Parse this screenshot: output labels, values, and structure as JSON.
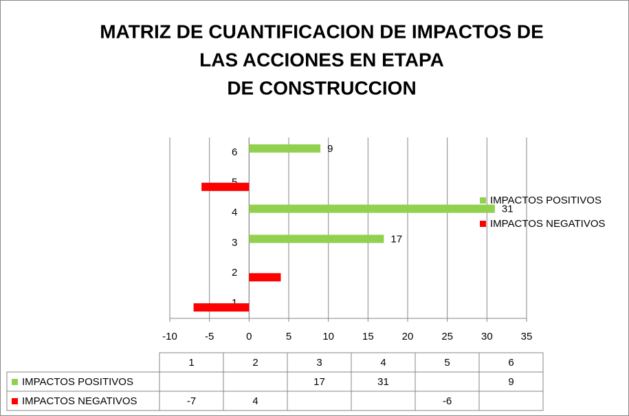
{
  "chart_data": {
    "type": "hbar",
    "title": [
      "MATRIZ DE CUANTIFICACION DE IMPACTOS DE",
      "LAS ACCIONES EN ETAPA",
      "DE CONSTRUCCION"
    ],
    "categories": [
      "1",
      "2",
      "3",
      "4",
      "5",
      "6"
    ],
    "series": [
      {
        "name": "IMPACTOS POSITIVOS",
        "color": "#92d050",
        "values": [
          null,
          null,
          17,
          31,
          null,
          9
        ],
        "show_labels": true
      },
      {
        "name": "IMPACTOS NEGATIVOS",
        "color": "#ff0000",
        "values": [
          -7,
          4,
          null,
          null,
          -6,
          null
        ],
        "show_labels": false
      }
    ],
    "xlim": [
      -10,
      35
    ],
    "xticks": [
      -10,
      -5,
      0,
      5,
      10,
      15,
      20,
      25,
      30,
      35
    ],
    "grid": true,
    "legend": "right",
    "data_table": true
  }
}
